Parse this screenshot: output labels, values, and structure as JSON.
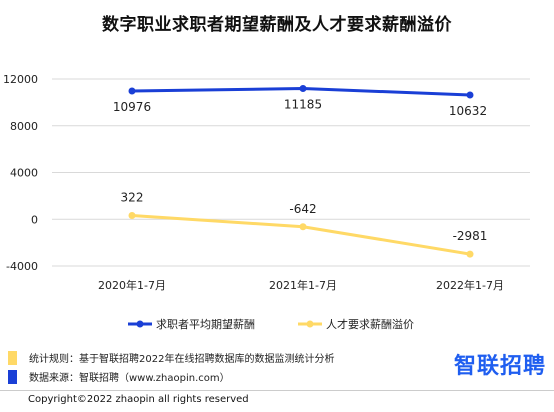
{
  "title": "数字职业求职者期望薪酬及人才要求薪酬溢价",
  "chart_data": {
    "type": "line",
    "categories": [
      "2020年1-7月",
      "2021年1-7月",
      "2022年1-7月"
    ],
    "series": [
      {
        "name": "求职者平均期望薪酬",
        "values": [
          10976,
          11185,
          10632
        ],
        "color": "#1a3fd6",
        "label_pos": "below"
      },
      {
        "name": "人才要求薪酬溢价",
        "values": [
          322,
          -642,
          -2981
        ],
        "color": "#ffd966",
        "label_pos": "above"
      }
    ],
    "y_ticks": [
      "-4000",
      "0",
      "4000",
      "8000",
      "12000"
    ],
    "ylim": [
      -4000,
      12000
    ],
    "grid": true,
    "legend": "bottom"
  },
  "notes": [
    {
      "text": "统计规则：基于智联招聘2022年在线招聘数据库的数据监测统计分析",
      "color": "#ffd966"
    },
    {
      "text": "数据来源：智联招聘（www.zhaopin.com）",
      "color": "#1a3fd6"
    }
  ],
  "brand": "智联招聘",
  "copyright": "Copyright©2022 zhaopin all rights reserved"
}
